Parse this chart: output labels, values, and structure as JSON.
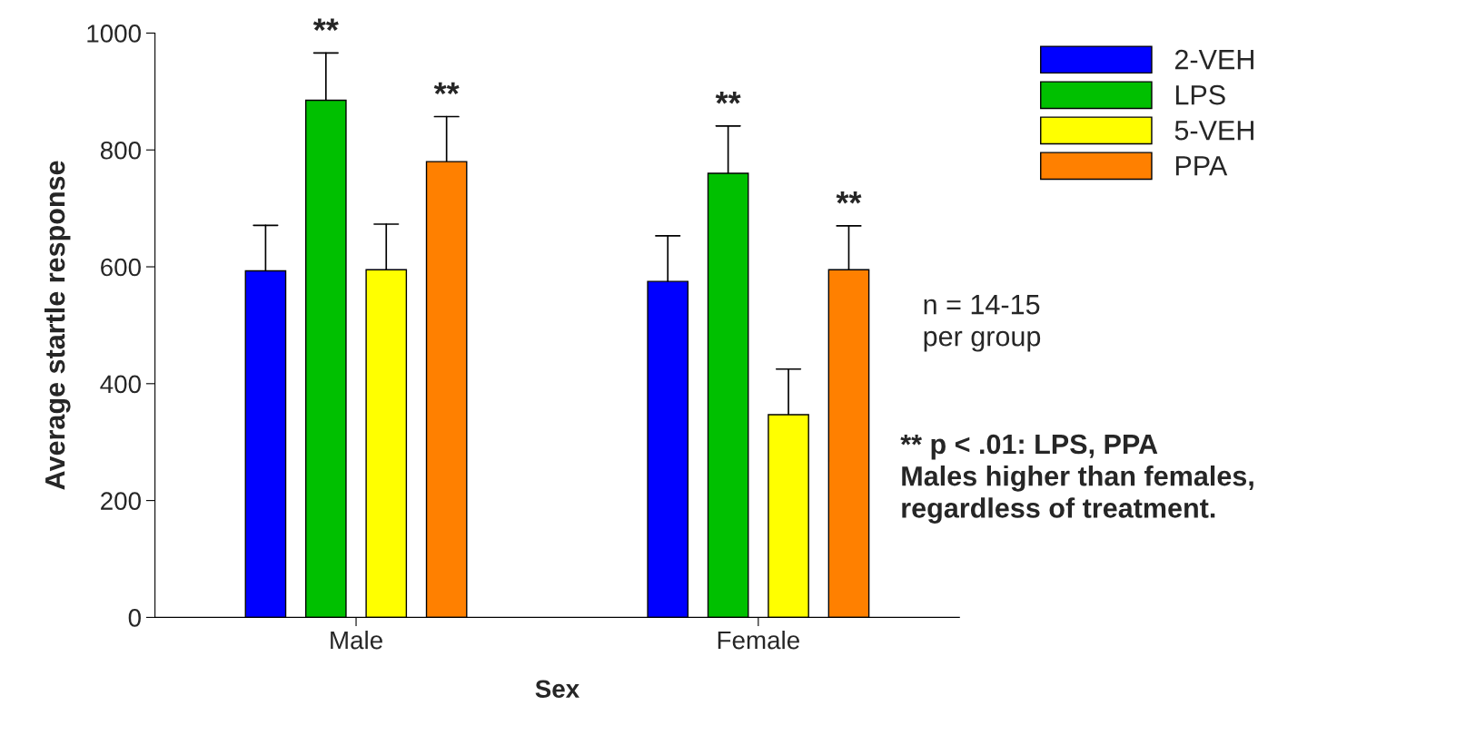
{
  "chart_data": {
    "type": "bar",
    "xlabel": "Sex",
    "ylabel": "Average startle response",
    "categories": [
      "Male",
      "Female"
    ],
    "series": [
      {
        "name": "2-VEH",
        "color": "#0000ff",
        "values": [
          593,
          575
        ],
        "errors": [
          [
            593,
            671
          ],
          [
            575,
            653
          ]
        ]
      },
      {
        "name": "LPS",
        "color": "#00c000",
        "values": [
          885,
          760
        ],
        "value_labels": [
          "**",
          "**"
        ],
        "errors": [
          [
            885,
            966
          ],
          [
            760,
            841
          ]
        ]
      },
      {
        "name": "5-VEH",
        "color": "#ffff00",
        "values": [
          595,
          347
        ],
        "errors": [
          [
            595,
            673
          ],
          [
            347,
            425
          ]
        ]
      },
      {
        "name": "PPA",
        "color": "#ff8000",
        "values": [
          780,
          595
        ],
        "value_labels": [
          "**",
          "**"
        ],
        "errors": [
          [
            780,
            857
          ],
          [
            595,
            670
          ]
        ]
      }
    ],
    "ylim": [
      0,
      1000
    ],
    "yticks": [
      0,
      200,
      400,
      600,
      800,
      1000
    ],
    "grid": false,
    "legend": "top right",
    "annotations": [
      "n = 14-15\nper group",
      "** p < .01: LPS, PPA\nMales higher than females,\nregardless of treatment."
    ]
  }
}
